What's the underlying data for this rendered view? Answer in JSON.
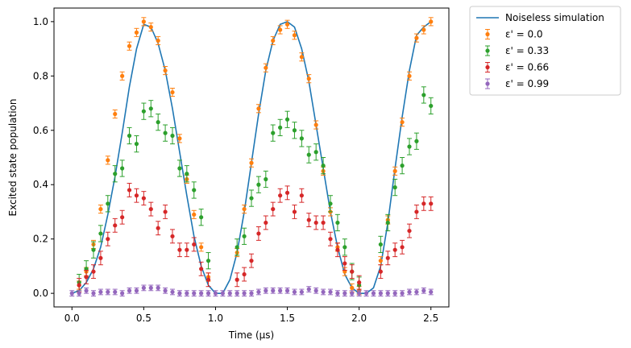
{
  "chart_data": {
    "type": "scatter",
    "xlabel": "Time (µs)",
    "ylabel": "Excited state population",
    "xlim": [
      -0.125,
      2.625
    ],
    "ylim": [
      -0.05,
      1.05
    ],
    "xticks": [
      0.0,
      0.5,
      1.0,
      1.5,
      2.0,
      2.5
    ],
    "xtick_labels": [
      "0.0",
      "0.5",
      "1.0",
      "1.5",
      "2.0",
      "2.5"
    ],
    "yticks": [
      0.0,
      0.2,
      0.4,
      0.6,
      0.8,
      1.0
    ],
    "ytick_labels": [
      "0.0",
      "0.2",
      "0.4",
      "0.6",
      "0.8",
      "1.0"
    ],
    "grid": false,
    "legend_position": "outside-top-right",
    "line": {
      "name": "Noiseless simulation",
      "color": "#1f77b4",
      "x": [
        0,
        0.05,
        0.1,
        0.15,
        0.2,
        0.25,
        0.3,
        0.35,
        0.4,
        0.45,
        0.5,
        0.55,
        0.6,
        0.65,
        0.7,
        0.75,
        0.8,
        0.85,
        0.9,
        0.95,
        1.0,
        1.05,
        1.1,
        1.15,
        1.2,
        1.25,
        1.3,
        1.35,
        1.4,
        1.45,
        1.5,
        1.55,
        1.6,
        1.65,
        1.7,
        1.75,
        1.8,
        1.85,
        1.9,
        1.95,
        2.0,
        2.05,
        2.1,
        2.15,
        2.2,
        2.25,
        2.3,
        2.35,
        2.4,
        2.45,
        2.5
      ],
      "y": [
        0,
        0.01,
        0.04,
        0.09,
        0.17,
        0.29,
        0.43,
        0.59,
        0.76,
        0.9,
        0.99,
        0.98,
        0.92,
        0.82,
        0.68,
        0.52,
        0.36,
        0.21,
        0.1,
        0.03,
        0,
        0.0,
        0.05,
        0.15,
        0.3,
        0.48,
        0.66,
        0.82,
        0.93,
        0.99,
        1.0,
        0.98,
        0.9,
        0.78,
        0.62,
        0.46,
        0.3,
        0.17,
        0.07,
        0.02,
        0,
        0,
        0.02,
        0.1,
        0.26,
        0.46,
        0.65,
        0.82,
        0.95,
        0.98,
        1.0
      ]
    },
    "error_series": [
      {
        "name": "ε' = 0.0",
        "color": "#ff7f0e",
        "x": [
          0.05,
          0.1,
          0.15,
          0.2,
          0.25,
          0.3,
          0.35,
          0.4,
          0.45,
          0.5,
          0.55,
          0.6,
          0.65,
          0.7,
          0.75,
          0.8,
          0.85,
          0.9,
          0.95,
          1.15,
          1.2,
          1.25,
          1.3,
          1.35,
          1.4,
          1.45,
          1.5,
          1.55,
          1.6,
          1.65,
          1.7,
          1.75,
          1.8,
          1.85,
          1.9,
          1.95,
          2.0,
          2.15,
          2.2,
          2.25,
          2.3,
          2.35,
          2.4,
          2.45,
          2.5
        ],
        "y": [
          0.03,
          0.08,
          0.18,
          0.31,
          0.49,
          0.66,
          0.8,
          0.91,
          0.96,
          1.0,
          0.98,
          0.93,
          0.82,
          0.74,
          0.57,
          0.42,
          0.29,
          0.17,
          0.06,
          0.15,
          0.31,
          0.48,
          0.68,
          0.83,
          0.93,
          0.97,
          0.99,
          0.95,
          0.87,
          0.79,
          0.62,
          0.45,
          0.3,
          0.17,
          0.08,
          0.02,
          0.01,
          0.12,
          0.27,
          0.45,
          0.63,
          0.8,
          0.94,
          0.97,
          1.0
        ],
        "err": 0.015
      },
      {
        "name": "ε' = 0.33",
        "color": "#2ca02c",
        "x": [
          0.05,
          0.1,
          0.15,
          0.2,
          0.25,
          0.3,
          0.35,
          0.4,
          0.45,
          0.5,
          0.55,
          0.6,
          0.65,
          0.7,
          0.75,
          0.8,
          0.85,
          0.9,
          0.95,
          1.15,
          1.2,
          1.25,
          1.3,
          1.35,
          1.4,
          1.45,
          1.5,
          1.55,
          1.6,
          1.65,
          1.7,
          1.75,
          1.8,
          1.85,
          1.9,
          1.95,
          2.0,
          2.15,
          2.2,
          2.25,
          2.3,
          2.35,
          2.4,
          2.45,
          2.5
        ],
        "y": [
          0.04,
          0.09,
          0.16,
          0.22,
          0.33,
          0.44,
          0.46,
          0.58,
          0.55,
          0.67,
          0.68,
          0.63,
          0.59,
          0.58,
          0.46,
          0.44,
          0.38,
          0.28,
          0.12,
          0.17,
          0.21,
          0.35,
          0.4,
          0.42,
          0.59,
          0.61,
          0.64,
          0.6,
          0.57,
          0.51,
          0.52,
          0.47,
          0.33,
          0.26,
          0.17,
          0.08,
          0.03,
          0.18,
          0.26,
          0.39,
          0.47,
          0.54,
          0.56,
          0.73,
          0.69
        ],
        "err": 0.03
      },
      {
        "name": "ε' = 0.66",
        "color": "#d62728",
        "x": [
          0.05,
          0.1,
          0.15,
          0.2,
          0.25,
          0.3,
          0.35,
          0.4,
          0.45,
          0.5,
          0.55,
          0.6,
          0.65,
          0.7,
          0.75,
          0.8,
          0.85,
          0.9,
          0.95,
          1.15,
          1.2,
          1.25,
          1.3,
          1.35,
          1.4,
          1.45,
          1.5,
          1.55,
          1.6,
          1.65,
          1.7,
          1.75,
          1.8,
          1.85,
          1.9,
          1.95,
          2.0,
          2.15,
          2.2,
          2.25,
          2.3,
          2.35,
          2.4,
          2.45,
          2.5
        ],
        "y": [
          0.03,
          0.06,
          0.08,
          0.13,
          0.2,
          0.25,
          0.28,
          0.38,
          0.36,
          0.35,
          0.31,
          0.24,
          0.3,
          0.21,
          0.16,
          0.16,
          0.18,
          0.09,
          0.05,
          0.05,
          0.07,
          0.12,
          0.22,
          0.26,
          0.31,
          0.36,
          0.37,
          0.3,
          0.36,
          0.27,
          0.26,
          0.26,
          0.2,
          0.16,
          0.11,
          0.08,
          0.04,
          0.08,
          0.13,
          0.16,
          0.17,
          0.23,
          0.3,
          0.33,
          0.33
        ],
        "err": 0.025
      },
      {
        "name": "ε' = 0.99",
        "color": "#9467bd",
        "x": [
          0,
          0.05,
          0.1,
          0.15,
          0.2,
          0.25,
          0.3,
          0.35,
          0.4,
          0.45,
          0.5,
          0.55,
          0.6,
          0.65,
          0.7,
          0.75,
          0.8,
          0.85,
          0.9,
          0.95,
          1.0,
          1.05,
          1.1,
          1.15,
          1.2,
          1.25,
          1.3,
          1.35,
          1.4,
          1.45,
          1.5,
          1.55,
          1.6,
          1.65,
          1.7,
          1.75,
          1.8,
          1.85,
          1.9,
          1.95,
          2.0,
          2.05,
          2.1,
          2.15,
          2.2,
          2.25,
          2.3,
          2.35,
          2.4,
          2.45,
          2.5
        ],
        "y": [
          0,
          0,
          0.01,
          0,
          0.005,
          0.005,
          0.005,
          0,
          0.01,
          0.01,
          0.02,
          0.02,
          0.02,
          0.01,
          0.005,
          0,
          0,
          0,
          0,
          0,
          0,
          0,
          0,
          0,
          0,
          0,
          0.005,
          0.01,
          0.01,
          0.01,
          0.01,
          0.005,
          0.005,
          0.015,
          0.01,
          0.005,
          0.005,
          0,
          0,
          0,
          0,
          0,
          0,
          0,
          0,
          0,
          0,
          0.005,
          0.005,
          0.01,
          0.005
        ],
        "err": 0.01
      }
    ]
  }
}
